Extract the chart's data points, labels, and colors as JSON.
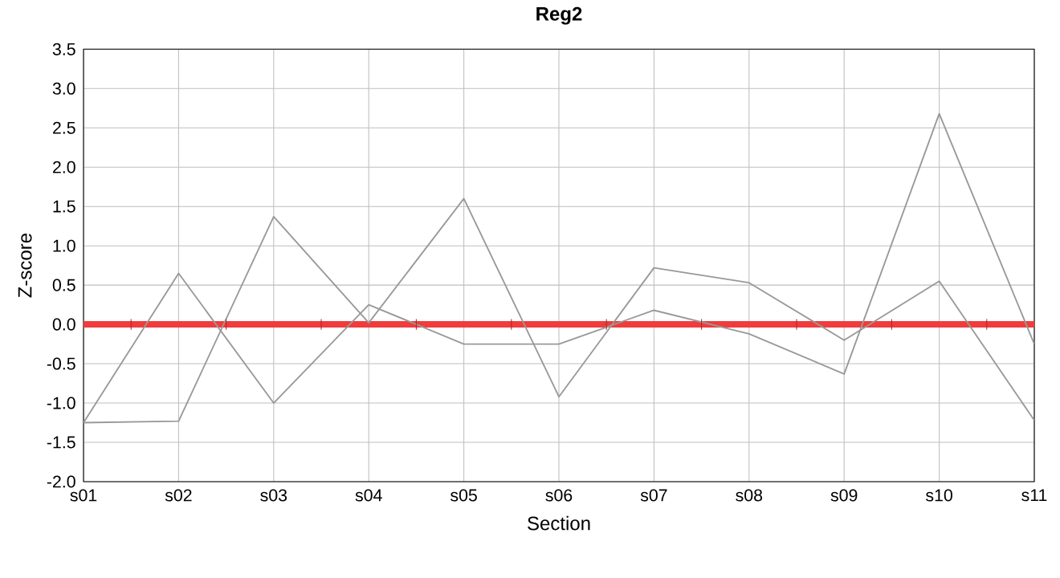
{
  "chart_data": {
    "type": "line",
    "title": "Reg2",
    "xlabel": "Section",
    "ylabel": "Z-score",
    "categories": [
      "s01",
      "s02",
      "s03",
      "s04",
      "s05",
      "s06",
      "s07",
      "s08",
      "s09",
      "s10",
      "s11"
    ],
    "series": [
      {
        "color": "#999999",
        "values": [
          -1.25,
          0.65,
          -1.0,
          0.25,
          -0.25,
          -0.25,
          0.18,
          -0.12,
          -0.63,
          2.68,
          -0.25
        ]
      },
      {
        "color": "#999999",
        "values": [
          -1.25,
          -1.23,
          1.37,
          0.02,
          1.6,
          -0.92,
          0.72,
          0.53,
          -0.2,
          0.55,
          -1.22
        ]
      }
    ],
    "ylim": [
      -2.0,
      3.5
    ],
    "yticks": [
      {
        "value": -2,
        "label": "-2.0"
      },
      {
        "value": -1.5,
        "label": "-1.5"
      },
      {
        "value": -1,
        "label": "-1.0"
      },
      {
        "value": -0.5,
        "label": "-0.5"
      },
      {
        "value": 0,
        "label": "0.0"
      },
      {
        "value": 0.5,
        "label": "0.5"
      },
      {
        "value": 1,
        "label": "1.0"
      },
      {
        "value": 1.5,
        "label": "1.5"
      },
      {
        "value": 2,
        "label": "2.0"
      },
      {
        "value": 2.5,
        "label": "2.5"
      },
      {
        "value": 3,
        "label": "3.0"
      },
      {
        "value": 3.5,
        "label": "3.5"
      }
    ],
    "ref_lines": [
      {
        "axis": "y",
        "value": 0,
        "color": "#f03c3c"
      }
    ],
    "grid": true,
    "marker": "none",
    "line_style": "solid"
  }
}
